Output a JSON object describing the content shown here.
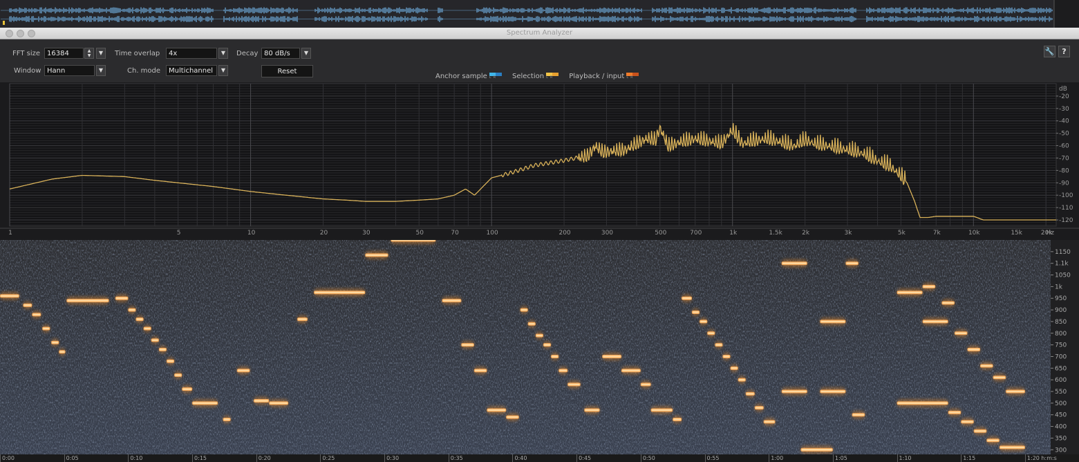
{
  "window": {
    "title": "Spectrum Analyzer"
  },
  "controls": {
    "fft_size": {
      "label": "FFT size",
      "value": "16384"
    },
    "time_overlap": {
      "label": "Time overlap",
      "value": "4x"
    },
    "decay": {
      "label": "Decay",
      "value": "80 dB/s"
    },
    "window_fn": {
      "label": "Window",
      "value": "Hann"
    },
    "ch_mode": {
      "label": "Ch. mode",
      "value": "Multichannel"
    },
    "reset_label": "Reset"
  },
  "legend": [
    {
      "label": "Anchor sample",
      "left_color": "#3fb6ea",
      "right_color": "#2a7fc4"
    },
    {
      "label": "Selection",
      "left_color": "#f2c447",
      "right_color": "#e6a030"
    },
    {
      "label": "Playback / input",
      "left_color": "#f07b2a",
      "right_color": "#c9521c"
    }
  ],
  "colors": {
    "spectrum_line": "#d9b25a",
    "waveform": "#6ea8d8",
    "hot": "#ffd9a0"
  },
  "chart_data": [
    {
      "type": "line",
      "xscale": "log",
      "xlabel": "Hz",
      "ylabel": "dB",
      "xlim": [
        1,
        22050
      ],
      "ylim": [
        -125,
        -10
      ],
      "x_tick_labels": [
        {
          "v": 1,
          "t": "1"
        },
        {
          "v": 5,
          "t": "5"
        },
        {
          "v": 10,
          "t": "10"
        },
        {
          "v": 20,
          "t": "20"
        },
        {
          "v": 30,
          "t": "30"
        },
        {
          "v": 50,
          "t": "50"
        },
        {
          "v": 70,
          "t": "70"
        },
        {
          "v": 100,
          "t": "100"
        },
        {
          "v": 200,
          "t": "200"
        },
        {
          "v": 300,
          "t": "300"
        },
        {
          "v": 500,
          "t": "500"
        },
        {
          "v": 700,
          "t": "700"
        },
        {
          "v": 1000,
          "t": "1k"
        },
        {
          "v": 1500,
          "t": "1.5k"
        },
        {
          "v": 2000,
          "t": "2k"
        },
        {
          "v": 3000,
          "t": "3k"
        },
        {
          "v": 5000,
          "t": "5k"
        },
        {
          "v": 7000,
          "t": "7k"
        },
        {
          "v": 10000,
          "t": "10k"
        },
        {
          "v": 15000,
          "t": "15k"
        },
        {
          "v": 20000,
          "t": "20k"
        }
      ],
      "y_tick_labels": [
        "-20",
        "-30",
        "-40",
        "-50",
        "-60",
        "-70",
        "-80",
        "-90",
        "-100",
        "-110",
        "-120"
      ],
      "series": [
        {
          "x": [
            1,
            1.5,
            2,
            3,
            4,
            5,
            7,
            10,
            14,
            20,
            25,
            30,
            40,
            50,
            60,
            70,
            78,
            85,
            100,
            120,
            150,
            200,
            250,
            270,
            290,
            320,
            360,
            400,
            440,
            480,
            500,
            540,
            600,
            700,
            800,
            900,
            1000,
            1100,
            1200,
            1400,
            1600,
            1800,
            2000,
            2200,
            2500,
            3000,
            3500,
            4000,
            4500,
            5000,
            5300,
            5700,
            6000,
            6500,
            7000,
            8000,
            10000,
            11000,
            15000,
            22050
          ],
          "y": [
            -95,
            -87,
            -84,
            -85,
            -88,
            -90,
            -93,
            -97,
            -100,
            -103,
            -104,
            -105,
            -105,
            -104,
            -103,
            -100,
            -95,
            -100,
            -86,
            -82,
            -76,
            -72,
            -68,
            -60,
            -65,
            -64,
            -63,
            -58,
            -54,
            -55,
            -45,
            -60,
            -57,
            -54,
            -56,
            -58,
            -47,
            -58,
            -56,
            -54,
            -57,
            -60,
            -55,
            -58,
            -60,
            -63,
            -66,
            -72,
            -76,
            -84,
            -90,
            -105,
            -118,
            -118,
            -117,
            -117,
            -117,
            -120,
            -120,
            -120
          ]
        }
      ]
    },
    {
      "type": "heatmap",
      "x_axis_unit": "h:m:s",
      "y_axis": "Hz",
      "ylim": [
        280,
        1200
      ],
      "x_tick_labels": [
        "0:00",
        "0:05",
        "0:10",
        "0:15",
        "0:20",
        "0:25",
        "0:30",
        "0:35",
        "0:40",
        "0:45",
        "0:50",
        "0:55",
        "1:00",
        "1:05",
        "1:10",
        "1:15",
        "1:20"
      ],
      "y_tick_labels": [
        "1150",
        "1.1k",
        "1050",
        "1k",
        "950",
        "900",
        "850",
        "800",
        "750",
        "700",
        "650",
        "600",
        "550",
        "500",
        "450",
        "400",
        "350",
        "300"
      ],
      "notes_time_s_freq_hz": [
        [
          0,
          1.5,
          960
        ],
        [
          1.8,
          2.5,
          920
        ],
        [
          2.5,
          3.2,
          880
        ],
        [
          3.3,
          3.9,
          820
        ],
        [
          4,
          4.6,
          760
        ],
        [
          4.6,
          5.1,
          720
        ],
        [
          5.2,
          8.5,
          940
        ],
        [
          9,
          10,
          950
        ],
        [
          10,
          10.6,
          900
        ],
        [
          10.6,
          11.2,
          860
        ],
        [
          11.2,
          11.8,
          820
        ],
        [
          11.8,
          12.4,
          770
        ],
        [
          12.4,
          13,
          730
        ],
        [
          13,
          13.6,
          680
        ],
        [
          13.6,
          14.2,
          620
        ],
        [
          14.2,
          15,
          560
        ],
        [
          15,
          17,
          500
        ],
        [
          17.4,
          18,
          430
        ],
        [
          18.5,
          19.5,
          640
        ],
        [
          19.8,
          21,
          510
        ],
        [
          21,
          22.5,
          500
        ],
        [
          23.2,
          24,
          860
        ],
        [
          24.5,
          28.5,
          975
        ],
        [
          28.5,
          30.3,
          1135
        ],
        [
          30.5,
          34,
          1200
        ],
        [
          34.5,
          36,
          940
        ],
        [
          36,
          37,
          750
        ],
        [
          37,
          38,
          640
        ],
        [
          38,
          39.5,
          470
        ],
        [
          39.5,
          40.5,
          440
        ],
        [
          40.6,
          41.2,
          900
        ],
        [
          41.2,
          41.8,
          840
        ],
        [
          41.8,
          42.4,
          790
        ],
        [
          42.4,
          43,
          750
        ],
        [
          43,
          43.6,
          700
        ],
        [
          43.6,
          44.3,
          640
        ],
        [
          44.3,
          45.3,
          580
        ],
        [
          45.6,
          46.8,
          470
        ],
        [
          47,
          48.5,
          700
        ],
        [
          48.5,
          50,
          640
        ],
        [
          50,
          50.8,
          580
        ],
        [
          50.8,
          52.5,
          470
        ],
        [
          52.5,
          53.2,
          430
        ],
        [
          53.2,
          54,
          950
        ],
        [
          54,
          54.6,
          890
        ],
        [
          54.6,
          55.2,
          850
        ],
        [
          55.2,
          55.8,
          800
        ],
        [
          55.8,
          56.4,
          750
        ],
        [
          56.4,
          57,
          700
        ],
        [
          57,
          57.6,
          650
        ],
        [
          57.6,
          58.2,
          600
        ],
        [
          58.2,
          58.9,
          540
        ],
        [
          58.9,
          59.6,
          480
        ],
        [
          59.6,
          60.5,
          420
        ],
        [
          61,
          63,
          550
        ],
        [
          61,
          63,
          1100
        ],
        [
          64,
          66,
          850
        ],
        [
          64,
          66,
          550
        ],
        [
          66.5,
          67.5,
          450
        ],
        [
          66,
          67,
          1100
        ],
        [
          70,
          72,
          975
        ],
        [
          72,
          74,
          850
        ],
        [
          70,
          74,
          500
        ],
        [
          74,
          75,
          460
        ],
        [
          75,
          76,
          420
        ],
        [
          76,
          77,
          380
        ],
        [
          77,
          78,
          340
        ],
        [
          78,
          80,
          310
        ],
        [
          62.5,
          65,
          300
        ],
        [
          72,
          73,
          1000
        ],
        [
          73.5,
          74.5,
          930
        ],
        [
          74.5,
          75.5,
          800
        ],
        [
          75.5,
          76.5,
          730
        ],
        [
          76.5,
          77.5,
          660
        ],
        [
          77.5,
          78.5,
          610
        ],
        [
          78.5,
          80,
          550
        ]
      ]
    }
  ]
}
